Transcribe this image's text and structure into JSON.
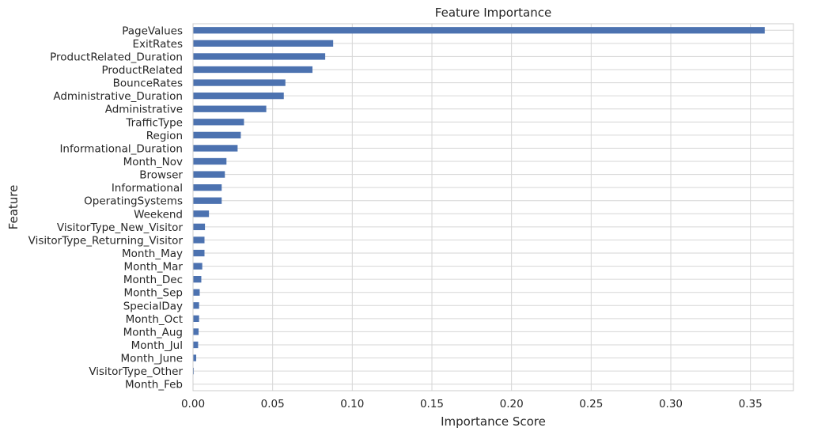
{
  "chart_data": {
    "type": "bar",
    "orientation": "horizontal",
    "title": "Feature Importance",
    "xlabel": "Importance Score",
    "ylabel": "Feature",
    "xlim": [
      0,
      0.377
    ],
    "xticks": [
      "0.00",
      "0.05",
      "0.10",
      "0.15",
      "0.20",
      "0.25",
      "0.30",
      "0.35"
    ],
    "grid": true,
    "bar_color": "#4c72b0",
    "categories": [
      "PageValues",
      "ExitRates",
      "ProductRelated_Duration",
      "ProductRelated",
      "BounceRates",
      "Administrative_Duration",
      "Administrative",
      "TrafficType",
      "Region",
      "Informational_Duration",
      "Month_Nov",
      "Browser",
      "Informational",
      "OperatingSystems",
      "Weekend",
      "VisitorType_New_Visitor",
      "VisitorType_Returning_Visitor",
      "Month_May",
      "Month_Mar",
      "Month_Dec",
      "Month_Sep",
      "SpecialDay",
      "Month_Oct",
      "Month_Aug",
      "Month_Jul",
      "Month_June",
      "VisitorType_Other",
      "Month_Feb"
    ],
    "values": [
      0.359,
      0.088,
      0.083,
      0.075,
      0.058,
      0.057,
      0.046,
      0.032,
      0.03,
      0.028,
      0.021,
      0.02,
      0.018,
      0.018,
      0.01,
      0.0075,
      0.0072,
      0.0072,
      0.0058,
      0.0052,
      0.0042,
      0.0038,
      0.0038,
      0.0035,
      0.0032,
      0.002,
      0.0005,
      0.0
    ]
  }
}
